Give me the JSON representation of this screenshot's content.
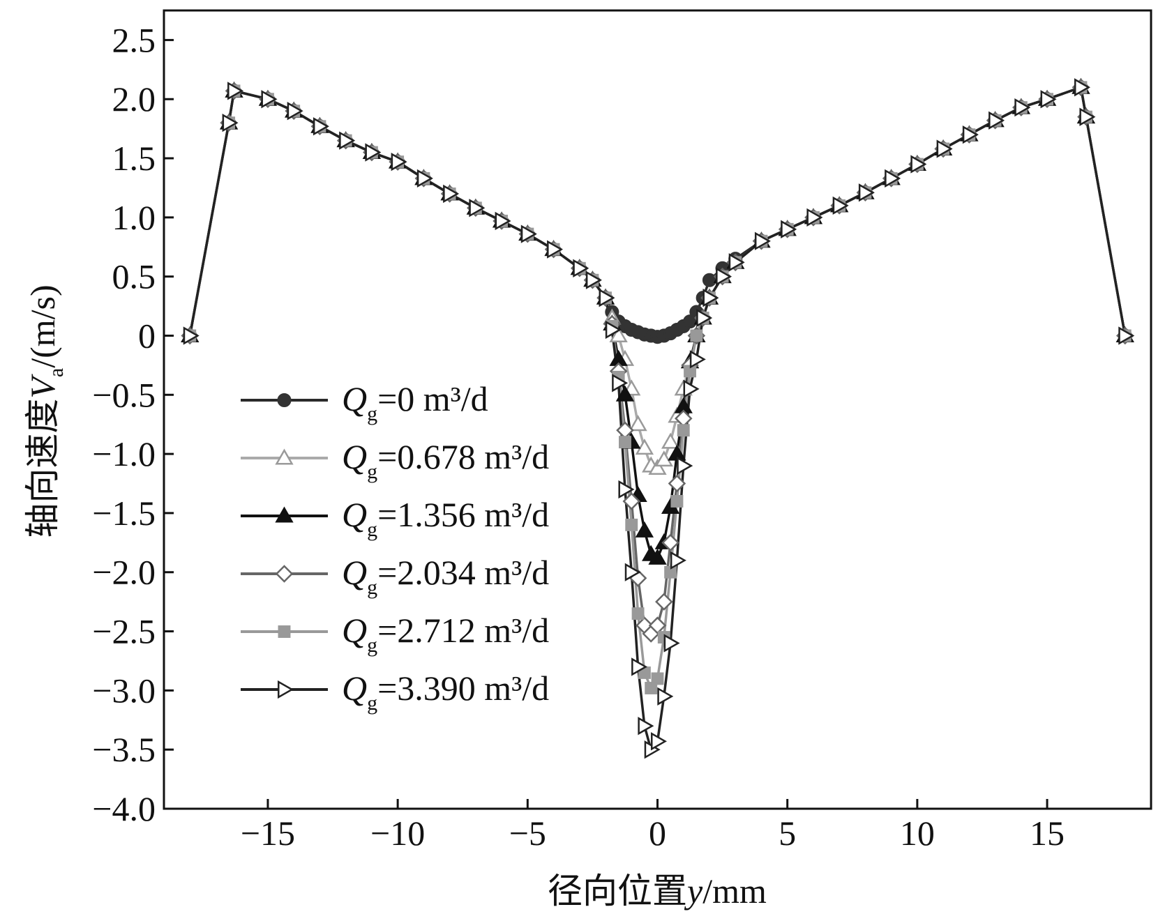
{
  "chart_data": {
    "type": "line",
    "xlabel": "径向位置y/mm",
    "ylabel": "轴向速度V_a/(m/s)",
    "xlabel_parts": {
      "pre": "径向位置",
      "var": "y",
      "post": "/mm"
    },
    "ylabel_parts": {
      "pre": "轴向速度",
      "var": "V",
      "sub": "a",
      "post": "/(m/s)"
    },
    "xlim": [
      -19,
      19
    ],
    "ylim": [
      -4.0,
      2.75
    ],
    "xticks": [
      -15,
      -10,
      -5,
      0,
      5,
      10,
      15
    ],
    "xtick_labels": [
      "−15",
      "−10",
      "−5",
      "0",
      "5",
      "10",
      "15"
    ],
    "yticks": [
      2.5,
      2.0,
      1.5,
      1.0,
      0.5,
      0,
      -0.5,
      -1.0,
      -1.5,
      -2.0,
      -2.5,
      -3.0,
      -3.5,
      -4.0
    ],
    "ytick_labels": [
      "2.5",
      "2.0",
      "1.5",
      "1.0",
      "0.5",
      "0",
      "−0.5",
      "−1.0",
      "−1.5",
      "−2.0",
      "−2.5",
      "−3.0",
      "−3.5",
      "−4.0"
    ],
    "legend_position": "lower-left",
    "grid": false,
    "x": [
      -18,
      -16.5,
      -16.3,
      -15,
      -14,
      -13,
      -12,
      -11,
      -10,
      -9,
      -8,
      -7,
      -6,
      -5,
      -4,
      -3,
      -2.5,
      -2,
      -1.75,
      -1.5,
      -1.25,
      -1,
      -0.75,
      -0.5,
      -0.25,
      0,
      0.25,
      0.5,
      0.75,
      1,
      1.25,
      1.5,
      1.75,
      2,
      2.5,
      3,
      4,
      5,
      6,
      7,
      8,
      9,
      10,
      11,
      12,
      13,
      14,
      15,
      16.3,
      16.5,
      18
    ],
    "series": [
      {
        "name": "0 m³/d",
        "marker": "circle",
        "line": "#2a2a2a",
        "fill": "#333333",
        "stroke": "#333333",
        "values": [
          0,
          1.8,
          2.07,
          2.0,
          1.9,
          1.77,
          1.65,
          1.55,
          1.47,
          1.33,
          1.2,
          1.08,
          0.97,
          0.86,
          0.73,
          0.57,
          0.47,
          0.32,
          0.2,
          0.12,
          0.08,
          0.05,
          0.03,
          0.01,
          0,
          -0.01,
          0,
          0.02,
          0.05,
          0.08,
          0.12,
          0.2,
          0.32,
          0.47,
          0.57,
          0.65,
          0.8,
          0.9,
          1.0,
          1.1,
          1.21,
          1.33,
          1.45,
          1.58,
          1.7,
          1.82,
          1.93,
          2.0,
          2.1,
          1.85,
          0
        ]
      },
      {
        "name": "0.678 m³/d",
        "marker": "triangle-up",
        "line": "#aaaaaa",
        "fill": "#ffffff",
        "stroke": "#9a9a9a",
        "values": [
          0,
          1.8,
          2.07,
          2.0,
          1.9,
          1.77,
          1.65,
          1.55,
          1.47,
          1.33,
          1.2,
          1.08,
          0.97,
          0.86,
          0.73,
          0.57,
          0.47,
          0.32,
          0.15,
          0.0,
          -0.2,
          -0.45,
          -0.75,
          -0.95,
          -1.1,
          -1.12,
          -1.05,
          -0.9,
          -0.68,
          -0.45,
          -0.22,
          0.0,
          0.15,
          0.32,
          0.5,
          0.62,
          0.8,
          0.9,
          1.0,
          1.1,
          1.21,
          1.33,
          1.45,
          1.58,
          1.7,
          1.82,
          1.93,
          2.0,
          2.1,
          1.85,
          0
        ]
      },
      {
        "name": "1.356 m³/d",
        "marker": "triangle-up",
        "line": "#111111",
        "fill": "#111111",
        "stroke": "#111111",
        "values": [
          0,
          1.8,
          2.07,
          2.0,
          1.9,
          1.77,
          1.65,
          1.55,
          1.47,
          1.33,
          1.2,
          1.08,
          0.97,
          0.86,
          0.73,
          0.57,
          0.47,
          0.32,
          0.1,
          -0.2,
          -0.5,
          -0.9,
          -1.35,
          -1.65,
          -1.85,
          -1.88,
          -1.75,
          -1.45,
          -1.0,
          -0.6,
          -0.22,
          0.0,
          0.15,
          0.32,
          0.5,
          0.62,
          0.8,
          0.9,
          1.0,
          1.1,
          1.21,
          1.33,
          1.45,
          1.58,
          1.7,
          1.82,
          1.93,
          2.0,
          2.1,
          1.85,
          0
        ]
      },
      {
        "name": "2.034 m³/d",
        "marker": "diamond",
        "line": "#666666",
        "fill": "#ffffff",
        "stroke": "#666666",
        "values": [
          0,
          1.8,
          2.07,
          2.0,
          1.9,
          1.77,
          1.65,
          1.55,
          1.47,
          1.33,
          1.2,
          1.08,
          0.97,
          0.86,
          0.73,
          0.57,
          0.47,
          0.32,
          0.1,
          -0.3,
          -0.8,
          -1.4,
          -2.05,
          -2.45,
          -2.52,
          -2.45,
          -2.25,
          -1.75,
          -1.25,
          -0.7,
          -0.25,
          0.0,
          0.15,
          0.32,
          0.5,
          0.62,
          0.8,
          0.9,
          1.0,
          1.1,
          1.21,
          1.33,
          1.45,
          1.58,
          1.7,
          1.82,
          1.93,
          2.0,
          2.1,
          1.85,
          0
        ]
      },
      {
        "name": "2.712 m³/d",
        "marker": "square",
        "line": "#999999",
        "fill": "#999999",
        "stroke": "#999999",
        "values": [
          0,
          1.8,
          2.07,
          2.0,
          1.9,
          1.77,
          1.65,
          1.55,
          1.47,
          1.33,
          1.2,
          1.08,
          0.97,
          0.86,
          0.73,
          0.57,
          0.47,
          0.32,
          0.08,
          -0.35,
          -0.9,
          -1.6,
          -2.35,
          -2.85,
          -2.98,
          -2.9,
          -2.55,
          -2.0,
          -1.4,
          -0.8,
          -0.3,
          0.0,
          0.15,
          0.32,
          0.5,
          0.62,
          0.8,
          0.9,
          1.0,
          1.1,
          1.21,
          1.33,
          1.45,
          1.58,
          1.7,
          1.82,
          1.93,
          2.0,
          2.1,
          1.85,
          0
        ]
      },
      {
        "name": "3.390 m³/d",
        "marker": "triangle-right",
        "line": "#222222",
        "fill": "#ffffff",
        "stroke": "#222222",
        "values": [
          0,
          1.8,
          2.07,
          2.0,
          1.9,
          1.77,
          1.65,
          1.55,
          1.47,
          1.33,
          1.2,
          1.08,
          0.97,
          0.86,
          0.73,
          0.57,
          0.47,
          0.32,
          0.05,
          -0.4,
          -1.3,
          -2.0,
          -2.8,
          -3.3,
          -3.5,
          -3.43,
          -3.05,
          -2.6,
          -1.9,
          -1.1,
          -0.45,
          -0.2,
          0.15,
          0.32,
          0.5,
          0.62,
          0.8,
          0.9,
          1.0,
          1.1,
          1.21,
          1.33,
          1.45,
          1.58,
          1.7,
          1.82,
          1.93,
          2.0,
          2.1,
          1.85,
          0
        ]
      }
    ]
  },
  "legend": {
    "var": "Q",
    "sub": "g",
    "eq": "=",
    "labels": [
      "0 m³/d",
      "0.678 m³/d",
      "1.356 m³/d",
      "2.034 m³/d",
      "2.712 m³/d",
      "3.390 m³/d"
    ]
  }
}
